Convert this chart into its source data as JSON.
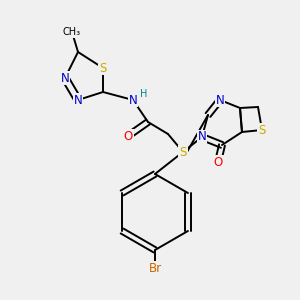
{
  "bg_color": "#f0f0f0",
  "atom_colors": {
    "C": "#000000",
    "N": "#0000cc",
    "S": "#ccaa00",
    "O": "#ff0000",
    "Br": "#cc6600",
    "H": "#008888"
  },
  "bond_color": "#000000",
  "bond_width": 1.4,
  "font_size": 8.5
}
